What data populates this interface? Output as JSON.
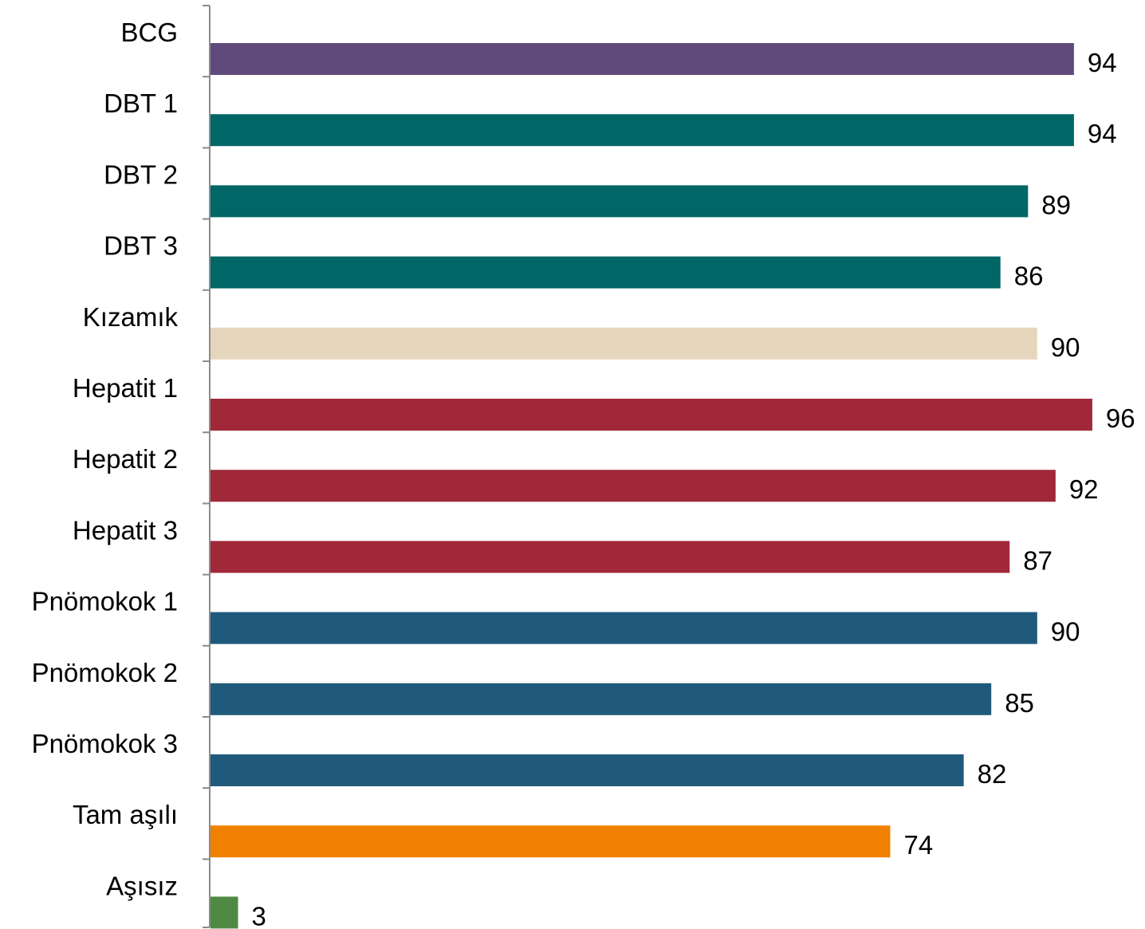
{
  "chart_data": {
    "type": "bar",
    "orientation": "horizontal",
    "title": "",
    "xlabel": "",
    "ylabel": "",
    "xlim": [
      0,
      96
    ],
    "grid": false,
    "legend": "none",
    "categories": [
      "BCG",
      "DBT 1",
      "DBT 2",
      "DBT 3",
      "Kızamık",
      "Hepatit 1",
      "Hepatit 2",
      "Hepatit 3",
      "Pnömokok 1",
      "Pnömokok 2",
      "Pnömokok 3",
      "Tam aşılı",
      "Aşısız"
    ],
    "values": [
      94,
      94,
      89,
      86,
      90,
      96,
      92,
      87,
      90,
      85,
      82,
      74,
      3
    ],
    "colors": [
      "#604a7b",
      "#006666",
      "#006666",
      "#006666",
      "#e6d6bd",
      "#a02838",
      "#a02838",
      "#a02838",
      "#1f5a7c",
      "#1f5a7c",
      "#1f5a7c",
      "#f08000",
      "#4f8a45"
    ]
  }
}
